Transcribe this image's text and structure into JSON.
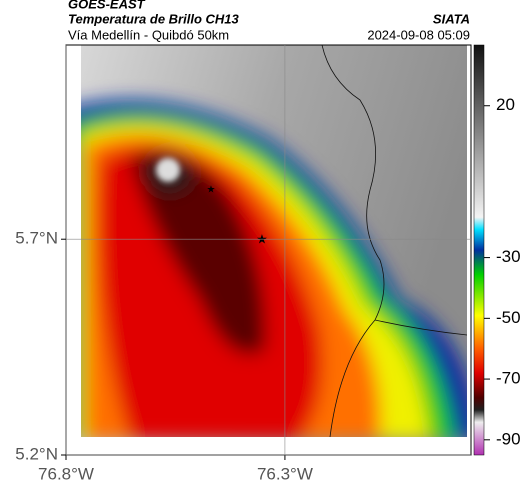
{
  "header": {
    "source": "GOES-EAST",
    "title": "Temperatura de Brillo CH13",
    "subtitle": "Vía Medellín - Quibdó 50km",
    "brand": "SIATA",
    "timestamp": "2024-09-08 05:09"
  },
  "map": {
    "xlim": [
      -76.8,
      -75.875
    ],
    "ylim": [
      5.2,
      6.15
    ],
    "xticks": [
      {
        "value": -76.8,
        "label": "76.8°W"
      },
      {
        "value": -76.3,
        "label": "76.3°W"
      }
    ],
    "yticks": [
      {
        "value": 5.2,
        "label": "5.2°N"
      },
      {
        "value": 5.7,
        "label": "5.7°N"
      }
    ],
    "grid": true
  },
  "colorbar": {
    "clim": [
      -95,
      40
    ],
    "ticks": [
      20,
      -30,
      -50,
      -70,
      -90
    ]
  }
}
